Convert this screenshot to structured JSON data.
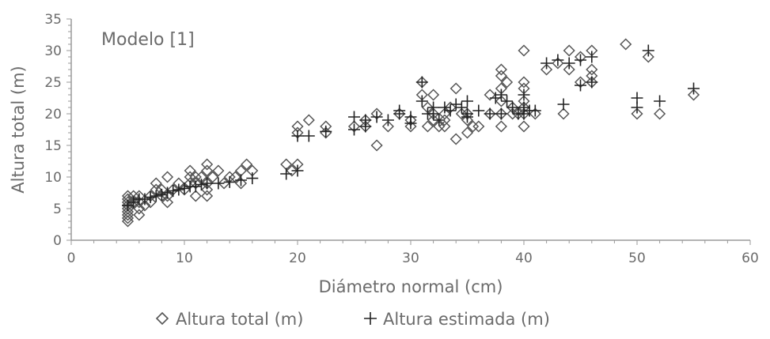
{
  "chart_data": {
    "type": "scatter",
    "annotation": "Modelo [1]",
    "xlabel": "Diámetro normal (cm)",
    "ylabel": "Altura total (m)",
    "xlim": [
      0,
      60
    ],
    "ylim": [
      0,
      35
    ],
    "xticks": [
      "0",
      "10",
      "20",
      "30",
      "40",
      "50",
      "60"
    ],
    "yticks": [
      "0",
      "5",
      "10",
      "15",
      "20",
      "25",
      "30",
      "35"
    ],
    "grid": false,
    "legend_position": "bottom",
    "series": [
      {
        "name": "Altura total (m)",
        "marker": "diamond",
        "color": "#555555",
        "points": [
          [
            5,
            3
          ],
          [
            5,
            3.5
          ],
          [
            5,
            4
          ],
          [
            5,
            4.5
          ],
          [
            5,
            5
          ],
          [
            5,
            5.5
          ],
          [
            5,
            6
          ],
          [
            5,
            6.5
          ],
          [
            5,
            7
          ],
          [
            5.5,
            6
          ],
          [
            5.5,
            7
          ],
          [
            6,
            4
          ],
          [
            6,
            5
          ],
          [
            6,
            6
          ],
          [
            6,
            7
          ],
          [
            6.5,
            5.5
          ],
          [
            7,
            6
          ],
          [
            7,
            7
          ],
          [
            7.5,
            8
          ],
          [
            7.5,
            9
          ],
          [
            8,
            8
          ],
          [
            8,
            7
          ],
          [
            8.5,
            6
          ],
          [
            8.5,
            7
          ],
          [
            8.5,
            10
          ],
          [
            9,
            8
          ],
          [
            9.5,
            9
          ],
          [
            10,
            8
          ],
          [
            10.5,
            9
          ],
          [
            10.5,
            10
          ],
          [
            10.5,
            11
          ],
          [
            11,
            7
          ],
          [
            11,
            9
          ],
          [
            11,
            10
          ],
          [
            11.5,
            10
          ],
          [
            12,
            7
          ],
          [
            12,
            8
          ],
          [
            12,
            9
          ],
          [
            12,
            11
          ],
          [
            12,
            12
          ],
          [
            12.5,
            10
          ],
          [
            13,
            11
          ],
          [
            13.5,
            9
          ],
          [
            14,
            10
          ],
          [
            14.5,
            10
          ],
          [
            15,
            11
          ],
          [
            15,
            9
          ],
          [
            15.5,
            12
          ],
          [
            16,
            11
          ],
          [
            19,
            12
          ],
          [
            19.5,
            11
          ],
          [
            20,
            12
          ],
          [
            20,
            17
          ],
          [
            20,
            18
          ],
          [
            21,
            19
          ],
          [
            22.5,
            18
          ],
          [
            22.5,
            17
          ],
          [
            25,
            18
          ],
          [
            26,
            18
          ],
          [
            26,
            19
          ],
          [
            27,
            15
          ],
          [
            27,
            20
          ],
          [
            28,
            18
          ],
          [
            29,
            20
          ],
          [
            30,
            19
          ],
          [
            30,
            18
          ],
          [
            31,
            23
          ],
          [
            31,
            25
          ],
          [
            31.5,
            18
          ],
          [
            31.5,
            21
          ],
          [
            32,
            19
          ],
          [
            32,
            23
          ],
          [
            32,
            20
          ],
          [
            32.5,
            18
          ],
          [
            33,
            19
          ],
          [
            33,
            18
          ],
          [
            33,
            20
          ],
          [
            33.5,
            21
          ],
          [
            34,
            16
          ],
          [
            34,
            24
          ],
          [
            34.5,
            20
          ],
          [
            35,
            17
          ],
          [
            35,
            19
          ],
          [
            35,
            20
          ],
          [
            35.5,
            18
          ],
          [
            36,
            18
          ],
          [
            37,
            20
          ],
          [
            37,
            23
          ],
          [
            38,
            18
          ],
          [
            38,
            20
          ],
          [
            38,
            22
          ],
          [
            38,
            24
          ],
          [
            38,
            26
          ],
          [
            38,
            27
          ],
          [
            38.5,
            25
          ],
          [
            39,
            20
          ],
          [
            39,
            21
          ],
          [
            39.5,
            20
          ],
          [
            40,
            18
          ],
          [
            40,
            20
          ],
          [
            40,
            21
          ],
          [
            40,
            22
          ],
          [
            40,
            24
          ],
          [
            40,
            25
          ],
          [
            40,
            30
          ],
          [
            41,
            20
          ],
          [
            42,
            27
          ],
          [
            43,
            28
          ],
          [
            43.5,
            20
          ],
          [
            44,
            27
          ],
          [
            44,
            30
          ],
          [
            45,
            25
          ],
          [
            45,
            29
          ],
          [
            46,
            25
          ],
          [
            46,
            26
          ],
          [
            46,
            27
          ],
          [
            46,
            30
          ],
          [
            49,
            31
          ],
          [
            50,
            20
          ],
          [
            51,
            29
          ],
          [
            52,
            20
          ],
          [
            55,
            23
          ]
        ]
      },
      {
        "name": "Altura estimada (m)",
        "marker": "plus",
        "color": "#222222",
        "points": [
          [
            5,
            5.5
          ],
          [
            5.5,
            6
          ],
          [
            6,
            6.5
          ],
          [
            6.5,
            6.5
          ],
          [
            7,
            6.8
          ],
          [
            7.5,
            7
          ],
          [
            8,
            7.2
          ],
          [
            8.5,
            7.5
          ],
          [
            9,
            7.8
          ],
          [
            9.5,
            8
          ],
          [
            10,
            8.2
          ],
          [
            10.5,
            8.5
          ],
          [
            11,
            8.5
          ],
          [
            11.5,
            8.8
          ],
          [
            12,
            9
          ],
          [
            13,
            9
          ],
          [
            14,
            9.2
          ],
          [
            15,
            9.5
          ],
          [
            16,
            9.8
          ],
          [
            19,
            10.5
          ],
          [
            20,
            11
          ],
          [
            20,
            16.5
          ],
          [
            21,
            16.5
          ],
          [
            22.5,
            17.2
          ],
          [
            25,
            17.5
          ],
          [
            25,
            19.5
          ],
          [
            26,
            18
          ],
          [
            26,
            19
          ],
          [
            27,
            19.5
          ],
          [
            28,
            19
          ],
          [
            29,
            20
          ],
          [
            29,
            20.5
          ],
          [
            30,
            19.5
          ],
          [
            30,
            18.5
          ],
          [
            31,
            25
          ],
          [
            31,
            22
          ],
          [
            31.5,
            20
          ],
          [
            32,
            21
          ],
          [
            32,
            20
          ],
          [
            32.5,
            19
          ],
          [
            33,
            21
          ],
          [
            33.5,
            20.5
          ],
          [
            34,
            21.5
          ],
          [
            34.5,
            21
          ],
          [
            35,
            20
          ],
          [
            35,
            19.5
          ],
          [
            35,
            22
          ],
          [
            36,
            20.5
          ],
          [
            37,
            20
          ],
          [
            37.5,
            22.5
          ],
          [
            38,
            20
          ],
          [
            38,
            23
          ],
          [
            38.5,
            22
          ],
          [
            39,
            21
          ],
          [
            39.5,
            20
          ],
          [
            40,
            20
          ],
          [
            40,
            21
          ],
          [
            40,
            23
          ],
          [
            40.5,
            20.5
          ],
          [
            41,
            20.5
          ],
          [
            42,
            28
          ],
          [
            43,
            28.5
          ],
          [
            43.5,
            21.5
          ],
          [
            44,
            28
          ],
          [
            45,
            24.5
          ],
          [
            45,
            28.5
          ],
          [
            46,
            25
          ],
          [
            46,
            29
          ],
          [
            50,
            22.5
          ],
          [
            50,
            21
          ],
          [
            51,
            30
          ],
          [
            52,
            22
          ],
          [
            55,
            24
          ]
        ]
      }
    ]
  }
}
